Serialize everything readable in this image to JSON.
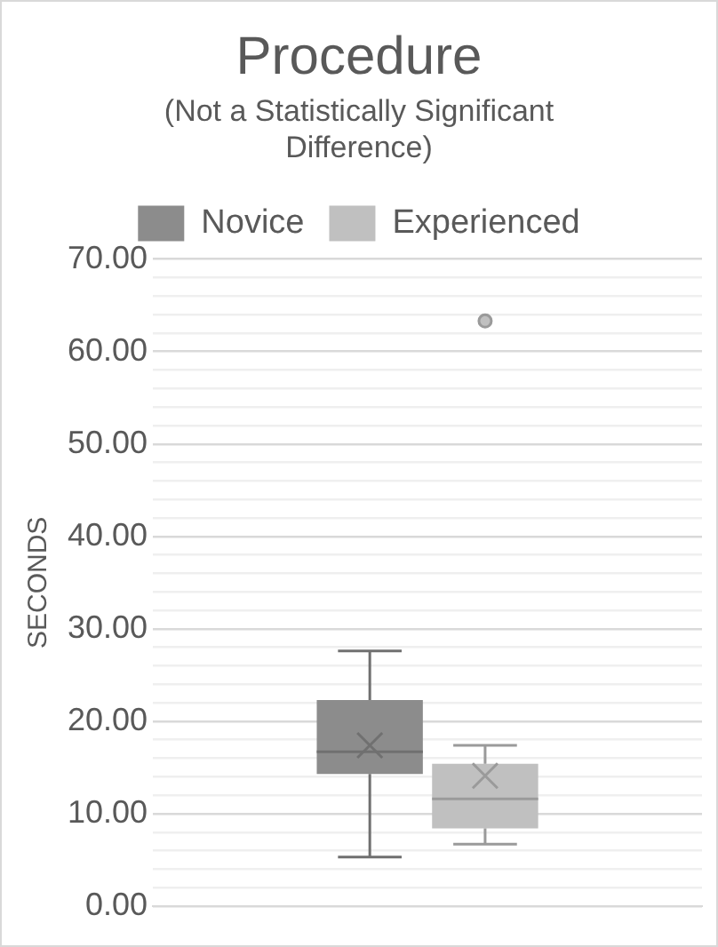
{
  "chart_data": {
    "type": "box",
    "title": "Procedure",
    "subtitle": "(Not a Statistically Significant Difference)",
    "ylabel": "SECONDS",
    "categories": [
      null
    ],
    "series": [
      {
        "name": "Novice",
        "color": "#8c8c8c",
        "boxes": [
          {
            "low": 5.3,
            "q1": 14.3,
            "median": 16.7,
            "q3": 22.3,
            "high": 27.6,
            "mean": 17.4
          }
        ]
      },
      {
        "name": "Experienced",
        "color": "#c0c0c0",
        "boxes": [
          {
            "low": 6.7,
            "q1": 8.4,
            "median": 11.6,
            "q3": 15.4,
            "high": 17.4,
            "mean": 14.1,
            "outliers": [
              63.3
            ]
          }
        ]
      }
    ],
    "ylim": [
      0,
      70
    ],
    "yticks": [
      {
        "value": 0,
        "label": "0.00"
      },
      {
        "value": 2,
        "label": null
      },
      {
        "value": 4,
        "label": null
      },
      {
        "value": 6,
        "label": null
      },
      {
        "value": 8,
        "label": null
      },
      {
        "value": 10,
        "label": "10.00"
      },
      {
        "value": 12,
        "label": null
      },
      {
        "value": 14,
        "label": null
      },
      {
        "value": 16,
        "label": null
      },
      {
        "value": 18,
        "label": null
      },
      {
        "value": 20,
        "label": "20.00"
      },
      {
        "value": 22,
        "label": null
      },
      {
        "value": 24,
        "label": null
      },
      {
        "value": 26,
        "label": null
      },
      {
        "value": 28,
        "label": null
      },
      {
        "value": 30,
        "label": "30.00"
      },
      {
        "value": 32,
        "label": null
      },
      {
        "value": 34,
        "label": null
      },
      {
        "value": 36,
        "label": null
      },
      {
        "value": 38,
        "label": null
      },
      {
        "value": 40,
        "label": "40.00"
      },
      {
        "value": 42,
        "label": null
      },
      {
        "value": 44,
        "label": null
      },
      {
        "value": 46,
        "label": null
      },
      {
        "value": 48,
        "label": null
      },
      {
        "value": 50,
        "label": "50.00"
      },
      {
        "value": 52,
        "label": null
      },
      {
        "value": 54,
        "label": null
      },
      {
        "value": 56,
        "label": null
      },
      {
        "value": 58,
        "label": null
      },
      {
        "value": 60,
        "label": "60.00"
      },
      {
        "value": 62,
        "label": null
      },
      {
        "value": 64,
        "label": null
      },
      {
        "value": 66,
        "label": null
      },
      {
        "value": 68,
        "label": null
      },
      {
        "value": 70,
        "label": "70.00"
      }
    ],
    "grid": "y",
    "legend": "top",
    "tick_labels": "y"
  }
}
